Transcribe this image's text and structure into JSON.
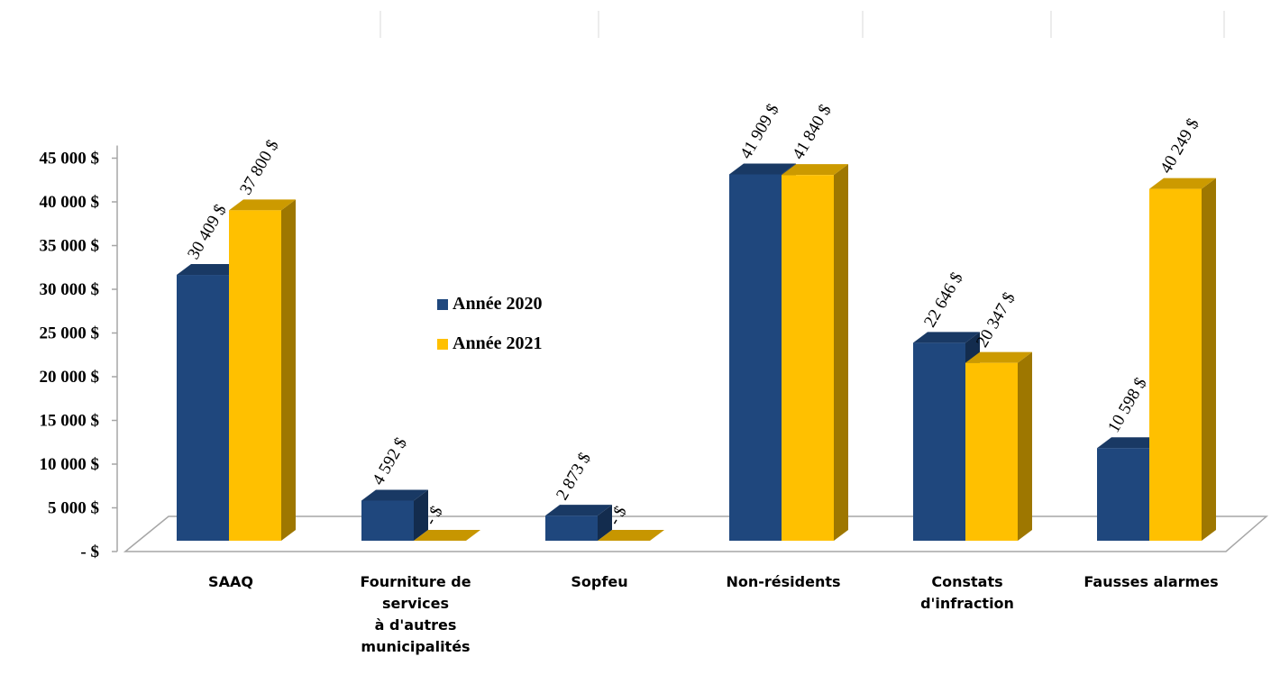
{
  "chart_data": {
    "type": "bar",
    "title": "",
    "xlabel": "",
    "ylabel": "",
    "ylim": [
      0,
      45000
    ],
    "y_ticks": [
      "-  $",
      "5 000  $",
      "10 000  $",
      "15 000  $",
      "20 000  $",
      "25 000  $",
      "30 000  $",
      "35 000  $",
      "40 000  $",
      "45 000  $"
    ],
    "categories": [
      [
        "SAAQ"
      ],
      [
        "Fourniture de",
        "services",
        "à d'autres",
        "municipalités"
      ],
      [
        "Sopfeu"
      ],
      [
        "Non-résidents"
      ],
      [
        "Constats",
        "d'infraction"
      ],
      [
        "Fausses alarmes"
      ]
    ],
    "series": [
      {
        "name": "Année 2020",
        "color": "#1f477d",
        "values": [
          30409,
          4592,
          2873,
          41909,
          22646,
          10598
        ],
        "labels": [
          "30 409  $",
          "4 592  $",
          "2 873  $",
          "41 909  $",
          "22 646  $",
          "10 598  $"
        ]
      },
      {
        "name": "Année 2021",
        "color": "#ffc000",
        "values": [
          37800,
          0,
          0,
          41840,
          20347,
          40249
        ],
        "labels": [
          "37 800  $",
          "-  $",
          "-  $",
          "41 840  $",
          "20 347  $",
          "40 249  $"
        ]
      }
    ],
    "legend_position": "center-left",
    "grid": false
  }
}
